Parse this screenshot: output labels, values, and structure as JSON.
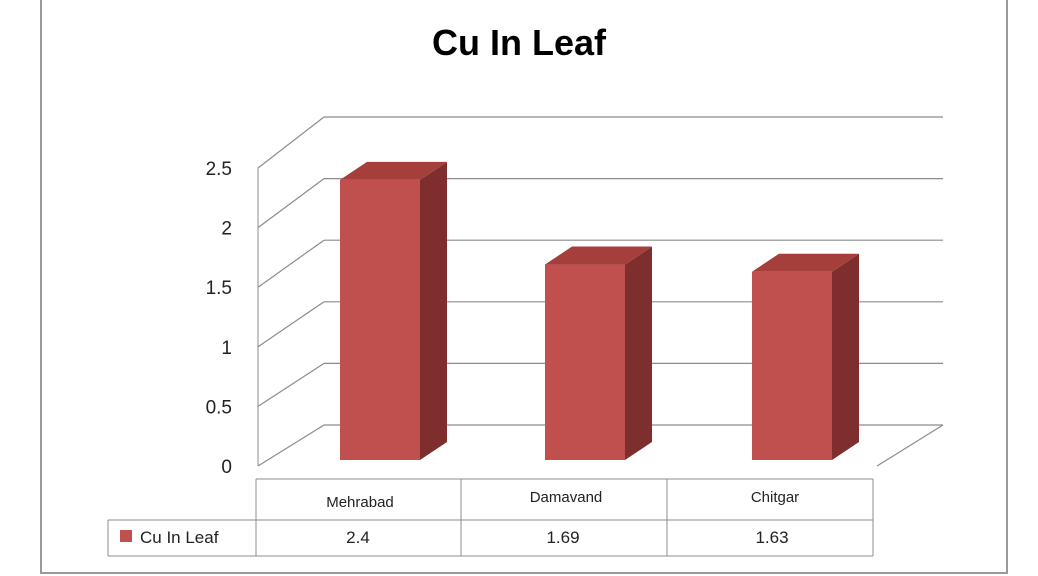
{
  "chart_data": {
    "type": "bar",
    "title": "Cu In Leaf",
    "categories": [
      "Mehrabad",
      "Damavand",
      "Chitgar"
    ],
    "series": [
      {
        "name": "Cu In Leaf",
        "values": [
          2.4,
          1.69,
          1.63
        ],
        "color": "#c0504d"
      }
    ],
    "y_ticks": [
      "0",
      "0.5",
      "1",
      "1.5",
      "2",
      "2.5"
    ],
    "ylim": [
      0,
      2.5
    ],
    "grid": true,
    "data_table": {
      "row_label": "Cu In Leaf",
      "values": [
        "2.4",
        "1.69",
        "1.63"
      ]
    },
    "colors": {
      "bar_front": "#c0504d",
      "bar_side": "#7e2f2d",
      "bar_top": "#a43f3c",
      "grid": "#8c8c8c"
    }
  }
}
